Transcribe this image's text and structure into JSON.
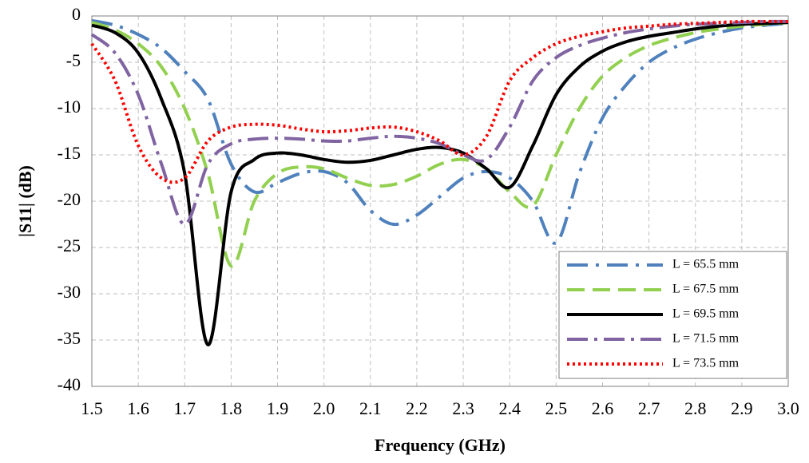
{
  "chart_data": {
    "type": "line",
    "x_label": "Frequency (GHz)",
    "y_label": "|S11| (dB)",
    "x": [
      1.5,
      1.55,
      1.6,
      1.65,
      1.7,
      1.75,
      1.8,
      1.85,
      1.9,
      1.95,
      2.0,
      2.05,
      2.1,
      2.15,
      2.2,
      2.25,
      2.3,
      2.35,
      2.4,
      2.45,
      2.5,
      2.55,
      2.6,
      2.65,
      2.7,
      2.75,
      2.8,
      2.85,
      2.9,
      2.95,
      3.0
    ],
    "series": [
      {
        "name": "L = 65.5 mm",
        "color": "#4f81bd",
        "dash": "26,10,4,10",
        "values": [
          -0.5,
          -1,
          -2,
          -3.5,
          -6,
          -9,
          -16,
          -19,
          -18,
          -17,
          -16.8,
          -18,
          -21,
          -22.5,
          -21.5,
          -19.5,
          -17.5,
          -16.8,
          -17.5,
          -20,
          -24.5,
          -17,
          -11,
          -7.5,
          -5,
          -3.5,
          -2.5,
          -1.8,
          -1.3,
          -1,
          -0.8
        ]
      },
      {
        "name": "L = 67.5 mm",
        "color": "#92d050",
        "dash": "22,10",
        "values": [
          -0.7,
          -1.5,
          -3,
          -5.5,
          -10,
          -17,
          -27,
          -20,
          -17,
          -16.3,
          -16.5,
          -17.5,
          -18.3,
          -18.2,
          -17.3,
          -16,
          -15.5,
          -16.5,
          -19,
          -20.5,
          -15,
          -10,
          -6.5,
          -4.5,
          -3.2,
          -2.4,
          -1.8,
          -1.4,
          -1.1,
          -0.9,
          -0.7
        ]
      },
      {
        "name": "L = 69.5 mm",
        "color": "#000000",
        "dash": "none",
        "values": [
          -1,
          -1.8,
          -4,
          -9,
          -17,
          -35.5,
          -19,
          -15.5,
          -14.8,
          -15,
          -15.5,
          -15.8,
          -15.6,
          -15,
          -14.4,
          -14.2,
          -14.8,
          -16.5,
          -18.5,
          -14,
          -8.5,
          -5.5,
          -3.8,
          -2.8,
          -2.2,
          -1.8,
          -1.4,
          -1.1,
          -0.9,
          -0.8,
          -0.7
        ]
      },
      {
        "name": "L = 71.5 mm",
        "color": "#8064a2",
        "dash": "26,8,4,8",
        "values": [
          -2,
          -4,
          -8.5,
          -16,
          -22.5,
          -16,
          -13.8,
          -13.3,
          -13.2,
          -13.3,
          -13.5,
          -13.5,
          -13.2,
          -13,
          -13.2,
          -13.8,
          -15,
          -15.5,
          -12,
          -7,
          -4.5,
          -3.2,
          -2.4,
          -1.8,
          -1.4,
          -1.1,
          -0.9,
          -0.8,
          -0.7,
          -0.6,
          -0.6
        ]
      },
      {
        "name": "L = 73.5 mm",
        "color": "#ff0000",
        "dash": "3,4",
        "values": [
          -3,
          -7,
          -14,
          -17.5,
          -17.5,
          -13.5,
          -12,
          -11.7,
          -11.8,
          -12.2,
          -12.5,
          -12.4,
          -12.1,
          -12,
          -12.5,
          -13.5,
          -15,
          -13,
          -7,
          -4.5,
          -3,
          -2.2,
          -1.7,
          -1.3,
          -1.1,
          -0.9,
          -0.8,
          -0.7,
          -0.6,
          -0.6,
          -0.6
        ]
      }
    ],
    "xlim": [
      1.5,
      3.0
    ],
    "xticks": [
      1.5,
      1.6,
      1.7,
      1.8,
      1.9,
      {
        "value": 2,
        "label": "2.0"
      },
      2.1,
      2.2,
      2.3,
      2.4,
      2.5,
      2.6,
      2.7,
      2.8,
      2.9,
      {
        "value": 3,
        "label": "3.0"
      }
    ],
    "ylim": [
      -40,
      0
    ],
    "yticks": [
      0,
      -5,
      -10,
      -15,
      -20,
      -25,
      -30,
      -35,
      -40
    ],
    "grid": true,
    "legend": "lower right"
  }
}
